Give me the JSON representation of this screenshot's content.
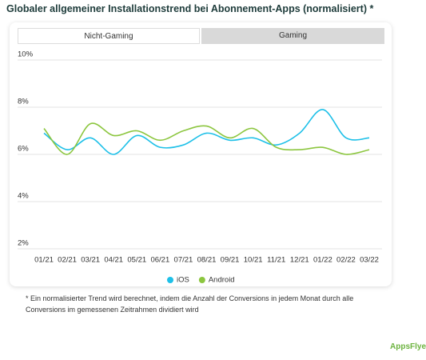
{
  "title": "Globaler allgemeiner Installationstrend bei Abonnement-Apps (normalisiert) *",
  "tabs": [
    "Nicht-Gaming",
    "Gaming"
  ],
  "chart_data": {
    "type": "line",
    "categories": [
      "01/21",
      "02/21",
      "03/21",
      "04/21",
      "05/21",
      "06/21",
      "07/21",
      "08/21",
      "09/21",
      "10/21",
      "11/21",
      "12/21",
      "01/22",
      "02/22",
      "03/22"
    ],
    "series": [
      {
        "name": "iOS",
        "color": "#1ec0e8",
        "values": [
          6.9,
          6.2,
          6.7,
          6.0,
          6.8,
          6.3,
          6.4,
          6.9,
          6.6,
          6.7,
          6.4,
          6.9,
          7.9,
          6.7,
          6.7
        ]
      },
      {
        "name": "Android",
        "color": "#8cc63f",
        "values": [
          7.1,
          6.0,
          7.3,
          6.8,
          7.0,
          6.6,
          7.0,
          7.2,
          6.7,
          7.1,
          6.3,
          6.2,
          6.3,
          6.0,
          6.2
        ]
      }
    ],
    "ylim": [
      2,
      10
    ],
    "yticks": [
      {
        "value": 2,
        "label": "2%"
      },
      {
        "value": 4,
        "label": "4%"
      },
      {
        "value": 6,
        "label": "6%"
      },
      {
        "value": 8,
        "label": "8%"
      },
      {
        "value": 10,
        "label": "10%"
      }
    ],
    "grid": true,
    "legend": "bottom"
  },
  "footnote": "* Ein normalisierter Trend wird berechnet, indem die Anzahl der Conversions in jedem Monat durch alle Conversions im gemessenen Zeitrahmen dividiert wird",
  "brand": "AppsFlyer"
}
